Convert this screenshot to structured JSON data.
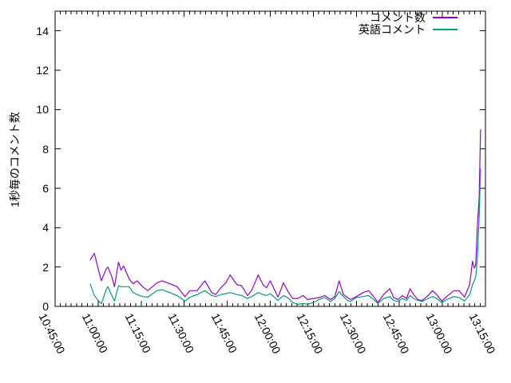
{
  "figure": {
    "background": "#ffffff",
    "border_color": "#000000",
    "text_color": "#000000"
  },
  "chart_data": {
    "type": "line",
    "title": "",
    "xlabel": "",
    "ylabel": "1秒毎のコメント数",
    "legend_position": "top-right-inside",
    "grid": false,
    "x_axis": {
      "note": "x values are minutes since 10:45:00",
      "range_minutes": [
        0,
        150
      ],
      "tick_minutes": [
        0,
        15,
        30,
        45,
        60,
        75,
        90,
        105,
        120,
        135,
        150
      ],
      "tick_labels": [
        "10:45:00",
        "11:00:00",
        "11:15:00",
        "11:30:00",
        "11:45:00",
        "12:00:00",
        "12:15:00",
        "12:30:00",
        "12:45:00",
        "13:00:00",
        "13:15:00"
      ],
      "minor_divisions_per_major": 8
    },
    "y_axis": {
      "range": [
        0,
        15
      ],
      "ticks": [
        0,
        2,
        4,
        6,
        8,
        10,
        12,
        14
      ]
    },
    "series": [
      {
        "name": "コメント数",
        "color": "#9400d3",
        "points": [
          [
            12.2,
            2.35
          ],
          [
            13.7,
            2.7
          ],
          [
            15.3,
            1.75
          ],
          [
            16.1,
            1.3
          ],
          [
            17.8,
            1.9
          ],
          [
            18.4,
            2.0
          ],
          [
            19.8,
            1.5
          ],
          [
            20.7,
            1.0
          ],
          [
            22.1,
            2.25
          ],
          [
            23,
            1.85
          ],
          [
            23.9,
            2.05
          ],
          [
            25.8,
            1.4
          ],
          [
            27.2,
            1.15
          ],
          [
            28.6,
            1.3
          ],
          [
            30.5,
            1.0
          ],
          [
            32.3,
            0.8
          ],
          [
            35.5,
            1.2
          ],
          [
            37.3,
            1.3
          ],
          [
            40,
            1.15
          ],
          [
            42.5,
            1.0
          ],
          [
            45.3,
            0.5
          ],
          [
            47,
            0.8
          ],
          [
            49.5,
            0.8
          ],
          [
            52.2,
            1.3
          ],
          [
            54.6,
            0.7
          ],
          [
            56,
            0.6
          ],
          [
            57.8,
            0.95
          ],
          [
            59.5,
            1.2
          ],
          [
            61,
            1.6
          ],
          [
            63.4,
            1.1
          ],
          [
            65,
            1.05
          ],
          [
            67.1,
            0.55
          ],
          [
            68.5,
            0.8
          ],
          [
            70.8,
            1.6
          ],
          [
            72.5,
            1.1
          ],
          [
            73.7,
            0.95
          ],
          [
            75,
            1.3
          ],
          [
            77.7,
            0.47
          ],
          [
            79.6,
            1.2
          ],
          [
            81,
            0.8
          ],
          [
            82.8,
            0.4
          ],
          [
            84.5,
            0.4
          ],
          [
            86.5,
            0.55
          ],
          [
            88,
            0.35
          ],
          [
            90,
            0.4
          ],
          [
            92,
            0.45
          ],
          [
            94,
            0.55
          ],
          [
            96,
            0.35
          ],
          [
            97.5,
            0.5
          ],
          [
            99,
            1.3
          ],
          [
            100.5,
            0.6
          ],
          [
            101.9,
            0.45
          ],
          [
            103,
            0.35
          ],
          [
            105,
            0.5
          ],
          [
            107.4,
            0.7
          ],
          [
            109.3,
            0.8
          ],
          [
            111,
            0.5
          ],
          [
            112.5,
            0.2
          ],
          [
            114.5,
            0.6
          ],
          [
            116.7,
            0.9
          ],
          [
            118,
            0.45
          ],
          [
            119.5,
            0.35
          ],
          [
            121,
            0.55
          ],
          [
            122.5,
            0.4
          ],
          [
            123.7,
            0.9
          ],
          [
            125,
            0.6
          ],
          [
            126.4,
            0.35
          ],
          [
            128,
            0.3
          ],
          [
            130,
            0.55
          ],
          [
            131.6,
            0.8
          ],
          [
            133,
            0.6
          ],
          [
            134.8,
            0.27
          ],
          [
            136.5,
            0.5
          ],
          [
            139,
            0.8
          ],
          [
            140.8,
            0.8
          ],
          [
            142.7,
            0.47
          ],
          [
            144.5,
            1.1
          ],
          [
            145.5,
            2.3
          ],
          [
            146.1,
            1.95
          ],
          [
            146.6,
            2.1
          ],
          [
            147.2,
            4.1
          ],
          [
            147.8,
            5.5
          ],
          [
            148.3,
            9.0
          ]
        ]
      },
      {
        "name": "英語コメント",
        "color": "#009e73",
        "points": [
          [
            12.2,
            1.15
          ],
          [
            13.7,
            0.55
          ],
          [
            15.3,
            0.25
          ],
          [
            16.1,
            0.13
          ],
          [
            17.8,
            0.85
          ],
          [
            18.4,
            1.0
          ],
          [
            19.8,
            0.55
          ],
          [
            20.7,
            0.27
          ],
          [
            22.1,
            1.05
          ],
          [
            23,
            1.0
          ],
          [
            23.9,
            1.0
          ],
          [
            25.8,
            1.0
          ],
          [
            27.2,
            0.7
          ],
          [
            28.6,
            0.6
          ],
          [
            30.5,
            0.5
          ],
          [
            32.3,
            0.47
          ],
          [
            35.5,
            0.8
          ],
          [
            37.3,
            0.85
          ],
          [
            40,
            0.7
          ],
          [
            42.5,
            0.55
          ],
          [
            45.3,
            0.27
          ],
          [
            47,
            0.47
          ],
          [
            49.5,
            0.6
          ],
          [
            52.2,
            0.8
          ],
          [
            54.6,
            0.55
          ],
          [
            56,
            0.5
          ],
          [
            57.8,
            0.6
          ],
          [
            59.5,
            0.65
          ],
          [
            61,
            0.7
          ],
          [
            63.4,
            0.6
          ],
          [
            65,
            0.55
          ],
          [
            67.1,
            0.4
          ],
          [
            68.5,
            0.5
          ],
          [
            70.8,
            0.7
          ],
          [
            72.5,
            0.6
          ],
          [
            73.7,
            0.55
          ],
          [
            75,
            0.65
          ],
          [
            77.7,
            0.3
          ],
          [
            79.6,
            0.55
          ],
          [
            81,
            0.45
          ],
          [
            82.8,
            0.2
          ],
          [
            84.5,
            0.1
          ],
          [
            86.5,
            0.15
          ],
          [
            88,
            0.1
          ],
          [
            90,
            0.2
          ],
          [
            92,
            0.35
          ],
          [
            94,
            0.45
          ],
          [
            96,
            0.25
          ],
          [
            97.5,
            0.4
          ],
          [
            99,
            0.75
          ],
          [
            100.5,
            0.5
          ],
          [
            101.9,
            0.3
          ],
          [
            103,
            0.25
          ],
          [
            105,
            0.45
          ],
          [
            107.4,
            0.5
          ],
          [
            109.3,
            0.55
          ],
          [
            111,
            0.35
          ],
          [
            112.5,
            0.15
          ],
          [
            114.5,
            0.4
          ],
          [
            116.7,
            0.5
          ],
          [
            118,
            0.3
          ],
          [
            119.5,
            0.25
          ],
          [
            121,
            0.4
          ],
          [
            122.5,
            0.3
          ],
          [
            123.7,
            0.55
          ],
          [
            125,
            0.4
          ],
          [
            126.4,
            0.3
          ],
          [
            128,
            0.25
          ],
          [
            130,
            0.4
          ],
          [
            131.6,
            0.5
          ],
          [
            133,
            0.4
          ],
          [
            134.8,
            0.2
          ],
          [
            136.5,
            0.35
          ],
          [
            139,
            0.5
          ],
          [
            140.8,
            0.45
          ],
          [
            142.7,
            0.27
          ],
          [
            144.5,
            0.6
          ],
          [
            145.5,
            1.1
          ],
          [
            146.1,
            1.3
          ],
          [
            146.6,
            1.5
          ],
          [
            147.2,
            2.4
          ],
          [
            147.8,
            4.5
          ],
          [
            148.3,
            7.0
          ]
        ]
      }
    ]
  }
}
